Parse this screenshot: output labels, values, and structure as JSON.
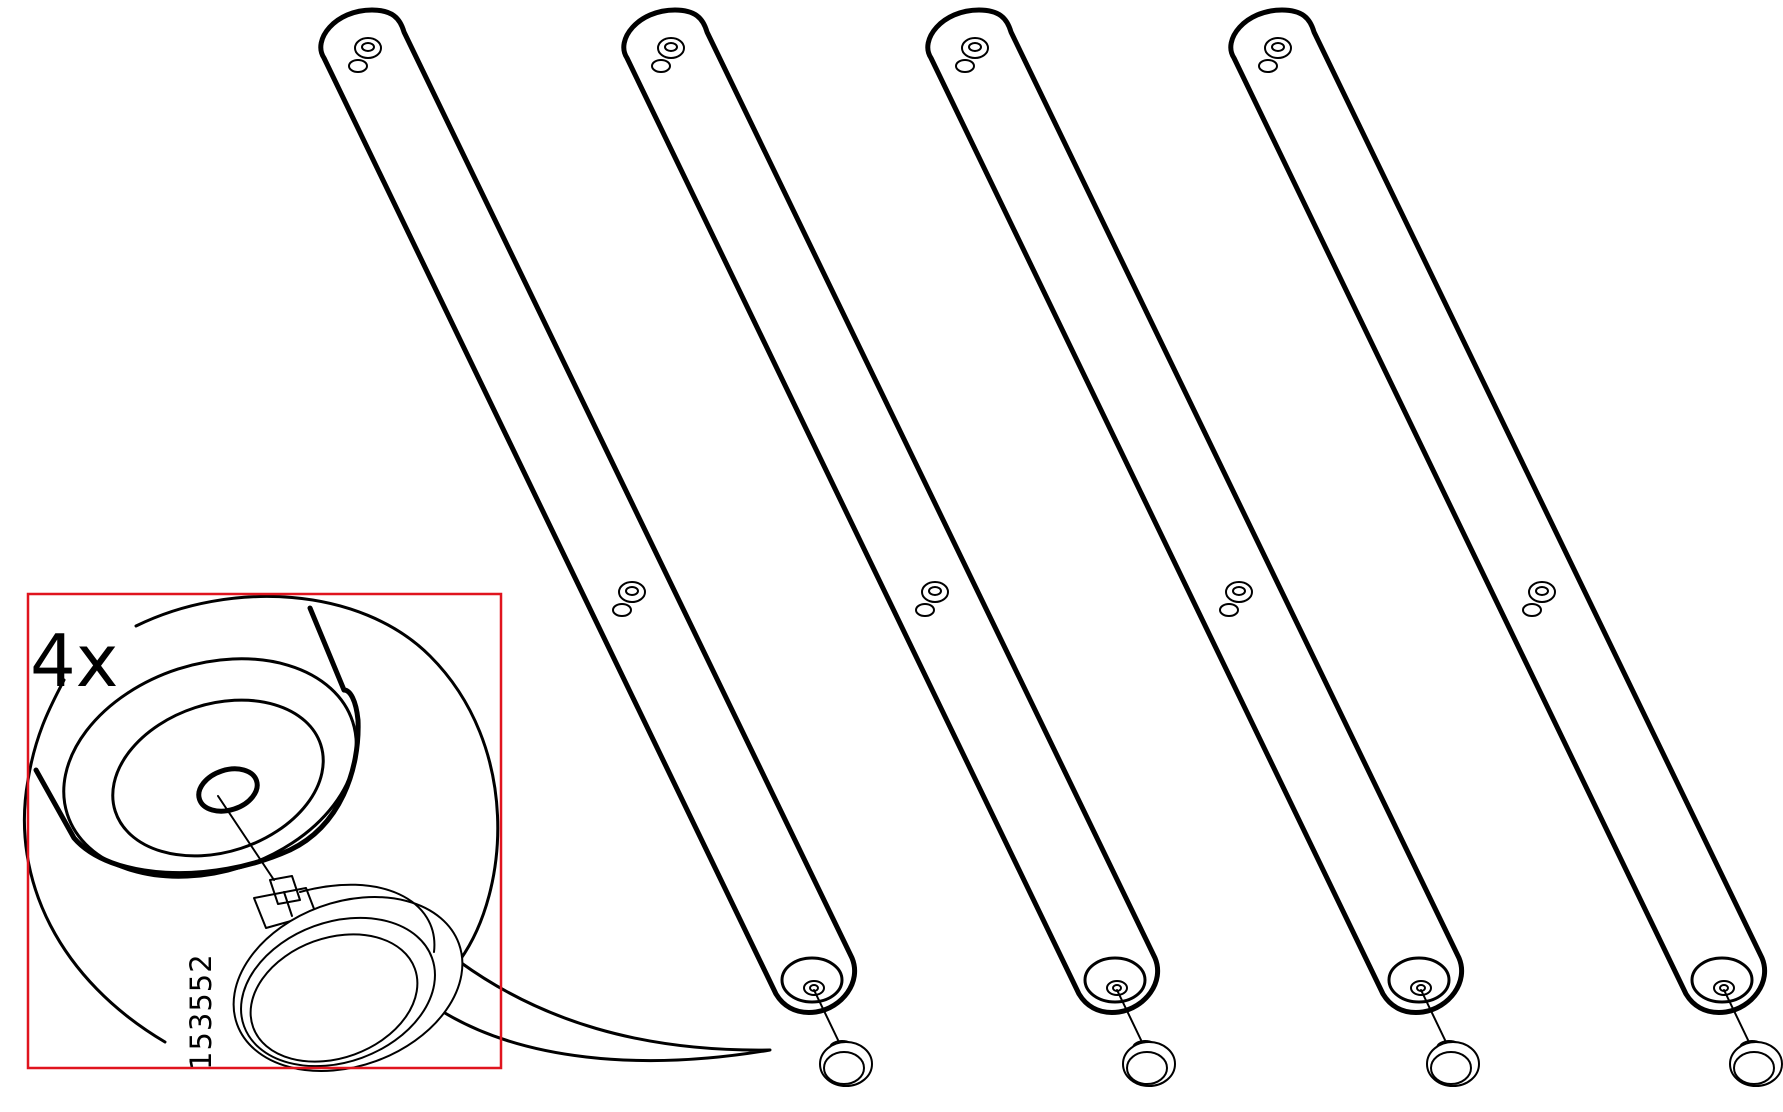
{
  "callout": {
    "quantity": "4x",
    "part_number": "153552",
    "frame_color": "#e0141e"
  },
  "legs": [
    {
      "id": "leg-1"
    },
    {
      "id": "leg-2"
    },
    {
      "id": "leg-3"
    },
    {
      "id": "leg-4"
    }
  ]
}
